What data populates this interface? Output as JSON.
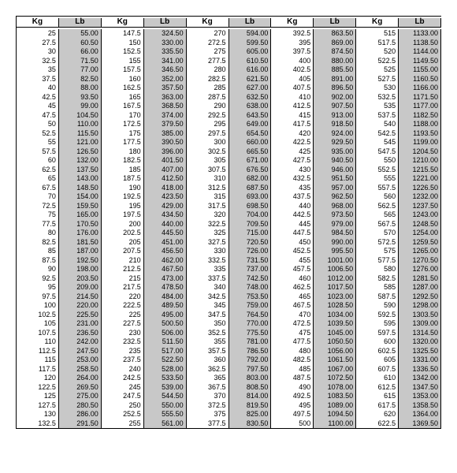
{
  "headers": {
    "kg": "Kg",
    "lb": "Lb"
  },
  "columns": [
    {
      "start": 25,
      "count": 44
    },
    {
      "start": 147.5,
      "count": 44
    },
    {
      "start": 270,
      "count": 44
    },
    {
      "start": 392.5,
      "count": 44
    },
    {
      "start": 515,
      "count": 44
    }
  ],
  "stepKg": 2.5,
  "lbPerKg": 2.2,
  "styles": {
    "lbBg": "#c8c8c8",
    "border": "#000000",
    "fontSize": 9,
    "headerFontSize": 10
  }
}
